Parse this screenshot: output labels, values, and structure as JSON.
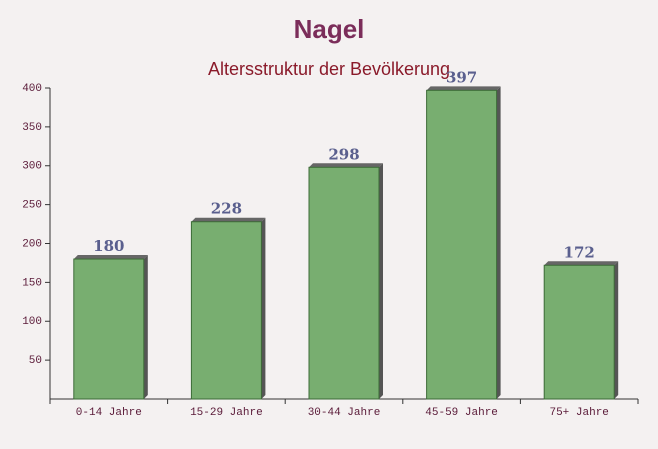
{
  "chart_data": {
    "type": "bar",
    "title": "Nagel",
    "subtitle": "Altersstruktur der Bevölkerung",
    "categories": [
      "0-14 Jahre",
      "15-29 Jahre",
      "30-44 Jahre",
      "45-59 Jahre",
      "75+ Jahre"
    ],
    "values": [
      180,
      228,
      298,
      397,
      172
    ],
    "color": "#6aa662",
    "ylim": [
      0,
      400
    ],
    "yticks": [
      50,
      100,
      150,
      200,
      250,
      300,
      350,
      400
    ],
    "grid": false
  }
}
